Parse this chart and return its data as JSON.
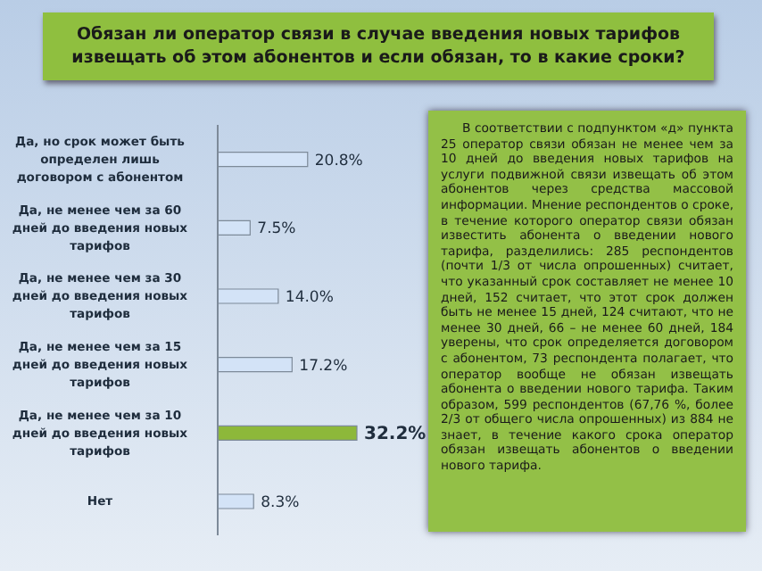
{
  "chart_data": [
    {
      "type": "bar",
      "orientation": "horizontal",
      "title": "Обязан ли оператор связи в случае введения новых тарифов извещать об этом абонентов и если обязан, то в какие сроки?",
      "categories": [
        "Да, но срок может быть определен лишь договором с абонентом",
        "Да, не менее чем за 60 дней до введения новых тарифов",
        "Да, не менее чем за 30 дней до введения новых тарифов",
        "Да, не менее чем за 15 дней до введения новых тарифов",
        "Да, не менее чем за 10 дней до введения новых тарифов",
        "Нет"
      ],
      "values": [
        20.8,
        7.5,
        14.0,
        17.2,
        32.2,
        8.3
      ],
      "value_labels": [
        "20.8%",
        "7.5%",
        "14.0%",
        "17.2%",
        "32.2%",
        "8.3%"
      ],
      "colors": [
        "#d3e3f7",
        "#d3e3f7",
        "#d3e3f7",
        "#d3e3f7",
        "#8db83a",
        "#d3e3f7"
      ]
    },
    {
      "type": "other",
      "annotations": [
        "В соответствии с подпунктом «д» пункта 25 оператор связи обязан не менее чем за 10 дней до введения новых тарифов на услуги подвижной связи извещать об этом абонентов через средства массовой информации. Мнение респондентов о сроке, в течение которого оператор связи обязан известить абонента о введении нового тарифа, разделились: 285 респондентов (почти 1/3 от числа опрошенных) считает, что указанный срок составляет не менее 10 дней, 152 считает, что этот срок должен быть не менее 15 дней, 124 считают, что не менее 30 дней, 66 – не менее 60 дней, 184 уверены, что срок определяется договором с абонентом, 73 респондента полагает, что оператор вообще не обязан извещать абонента о введении нового тарифа. Таким образом, 599 респондентов (67,76 %, более 2/3 от общего числа опрошенных) из 884 не знает, в течение какого срока оператор обязан извещать абонентов о введении нового тарифа."
      ]
    }
  ]
}
